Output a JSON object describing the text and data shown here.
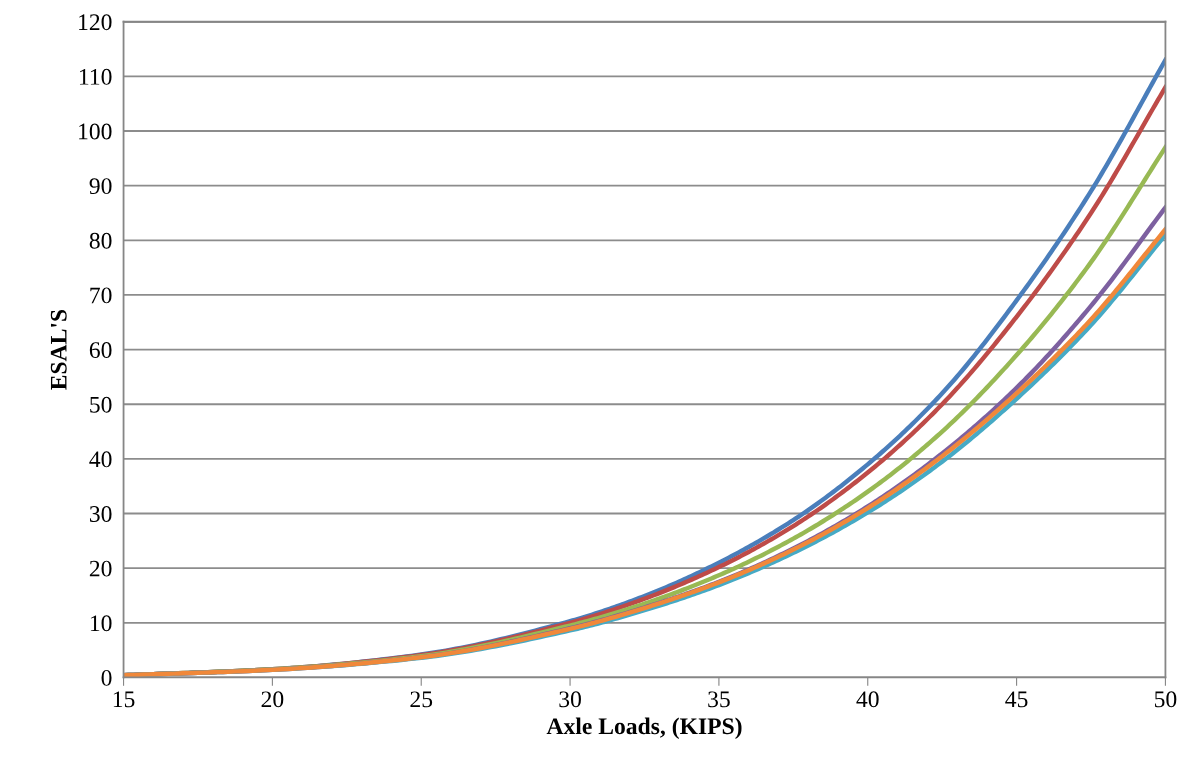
{
  "chart_data": {
    "type": "line",
    "xlabel": "Axle Loads, (KIPS)",
    "ylabel": "ESAL'S",
    "x": [
      15,
      20,
      25,
      30,
      32.5,
      35,
      37.5,
      40,
      42.5,
      45,
      47.5,
      50
    ],
    "series": [
      {
        "color": "#4a7ebb",
        "values": [
          0.4,
          1.5,
          4.2,
          10.3,
          14.9,
          21,
          28.8,
          39,
          52,
          69,
          89,
          113
        ]
      },
      {
        "color": "#be4b48",
        "values": [
          0.4,
          1.5,
          4.1,
          10,
          14.4,
          20.2,
          27.7,
          37.5,
          50,
          66,
          85,
          108
        ]
      },
      {
        "color": "#98b954",
        "values": [
          0.4,
          1.5,
          3.9,
          9.5,
          13.5,
          18.7,
          25.4,
          34,
          45,
          59,
          76,
          97
        ]
      },
      {
        "color": "#7d60a0",
        "values": [
          0.4,
          1.4,
          3.7,
          9,
          12.8,
          17.5,
          23.6,
          31.3,
          41,
          53,
          68,
          86
        ]
      },
      {
        "color": "#46aac5",
        "values": [
          0.4,
          1.4,
          3.6,
          8.6,
          12.3,
          16.9,
          22.8,
          30.2,
          39.5,
          51,
          64.5,
          81
        ]
      },
      {
        "color": "#f0883a",
        "values": [
          0.4,
          1.4,
          3.7,
          8.9,
          12.7,
          17.4,
          23.4,
          31,
          40.5,
          52,
          65.5,
          82
        ]
      }
    ],
    "xlim": [
      15,
      50
    ],
    "xticks": [
      15,
      20,
      25,
      30,
      35,
      40,
      45,
      50
    ],
    "ylim": [
      0,
      120
    ],
    "yticks": [
      0,
      10,
      20,
      30,
      40,
      50,
      60,
      70,
      80,
      90,
      100,
      110,
      120
    ],
    "grid": "y",
    "marker": "none",
    "line_style": "solid"
  }
}
